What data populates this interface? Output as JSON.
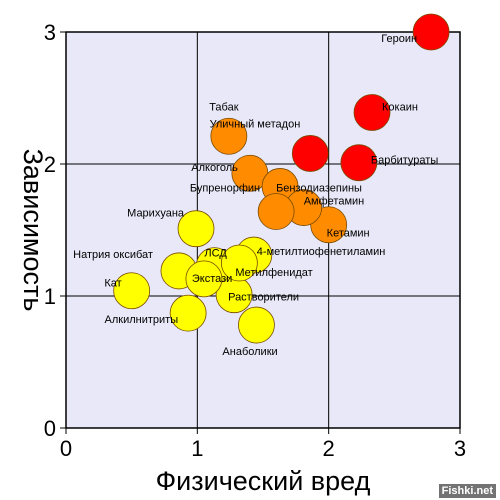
{
  "chart_data": {
    "type": "scatter",
    "xlabel": "Физический вред",
    "ylabel": "Зависимость",
    "xlim": [
      0,
      3
    ],
    "ylim": [
      0,
      3
    ],
    "x_ticks": [
      "0",
      "1",
      "2",
      "3"
    ],
    "y_ticks": [
      "0",
      "1",
      "2",
      "3"
    ],
    "grid": true,
    "background_color": "#e8e8f8",
    "points": [
      {
        "name": "Героин",
        "x": 2.78,
        "y": 3.0,
        "color": "#ff0000"
      },
      {
        "name": "Кокаин",
        "x": 2.33,
        "y": 2.39,
        "color": "#ff0000"
      },
      {
        "name": "Барбитураты",
        "x": 2.23,
        "y": 2.01,
        "color": "#ff0000"
      },
      {
        "name": "Уличный метадон",
        "x": 1.86,
        "y": 2.08,
        "color": "#ff0000"
      },
      {
        "name": "Алкоголь",
        "x": 1.4,
        "y": 1.93,
        "color": "#ff8c00"
      },
      {
        "name": "Кетамин",
        "x": 2.0,
        "y": 1.54,
        "color": "#ff8c00"
      },
      {
        "name": "Бензодиазепины",
        "x": 1.63,
        "y": 1.83,
        "color": "#ff8c00"
      },
      {
        "name": "Амфетамин",
        "x": 1.81,
        "y": 1.67,
        "color": "#ff8c00"
      },
      {
        "name": "Табак",
        "x": 1.24,
        "y": 2.21,
        "color": "#ff8c00"
      },
      {
        "name": "Бупренорфин",
        "x": 1.6,
        "y": 1.64,
        "color": "#ff8c00"
      },
      {
        "name": "Марихуана",
        "x": 0.99,
        "y": 1.51,
        "color": "#ffff00"
      },
      {
        "name": "Растворители",
        "x": 1.28,
        "y": 1.01,
        "color": "#ffff00"
      },
      {
        "name": "4-метилтиофенетиламин",
        "x": 1.43,
        "y": 1.31,
        "color": "#ffff00"
      },
      {
        "name": "ЛСД",
        "x": 1.13,
        "y": 1.23,
        "color": "#ffff00"
      },
      {
        "name": "Метилфенидат",
        "x": 1.32,
        "y": 1.25,
        "color": "#ffff00"
      },
      {
        "name": "Анаболики",
        "x": 1.45,
        "y": 0.78,
        "color": "#ffff00"
      },
      {
        "name": "Натрия оксибат",
        "x": 0.86,
        "y": 1.19,
        "color": "#ffff00"
      },
      {
        "name": "Экстази",
        "x": 1.05,
        "y": 1.13,
        "color": "#ffff00"
      },
      {
        "name": "Алкилнитриты",
        "x": 0.93,
        "y": 0.87,
        "color": "#ffff00"
      },
      {
        "name": "Кат",
        "x": 0.5,
        "y": 1.04,
        "color": "#ffff00"
      }
    ]
  },
  "watermark": "Fishki.net"
}
